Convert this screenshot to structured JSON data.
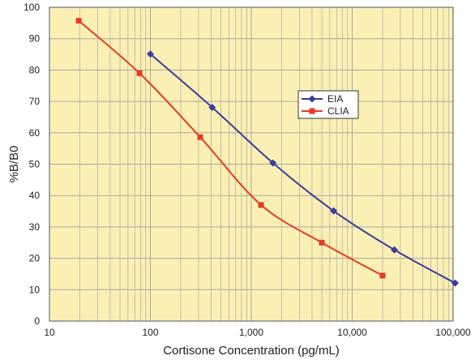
{
  "chart_data": {
    "type": "line",
    "title": "",
    "xlabel": "Cortisone Concentration (pg/mL)",
    "ylabel": "%B/B0",
    "x_scale": "log",
    "xlim": [
      10,
      100000
    ],
    "ylim": [
      0,
      100
    ],
    "x_ticks": [
      10,
      100,
      1000,
      10000,
      100000
    ],
    "x_tick_labels": [
      "10",
      "100",
      "1,000",
      "10,000",
      "100,000"
    ],
    "y_ticks": [
      0,
      10,
      20,
      30,
      40,
      50,
      60,
      70,
      80,
      90,
      100
    ],
    "y_tick_labels": [
      "0",
      "10",
      "20",
      "30",
      "40",
      "50",
      "60",
      "70",
      "80",
      "90",
      "100"
    ],
    "grid": true,
    "legend_position": "center-right",
    "plot_background": "#fbf0b4",
    "grid_color": "#a8a8a8",
    "series": [
      {
        "name": "EIA",
        "color": "#3b3d9a",
        "marker": "diamond",
        "points": [
          {
            "x": 100,
            "y": 85.1
          },
          {
            "x": 410,
            "y": 68.1
          },
          {
            "x": 1640,
            "y": 50.4
          },
          {
            "x": 6550,
            "y": 35.1
          },
          {
            "x": 26200,
            "y": 22.7
          },
          {
            "x": 104800,
            "y": 12.1
          }
        ]
      },
      {
        "name": "CLIA",
        "color": "#e63a25",
        "marker": "square",
        "points": [
          {
            "x": 19.5,
            "y": 95.7
          },
          {
            "x": 78,
            "y": 79.0
          },
          {
            "x": 312,
            "y": 58.6
          },
          {
            "x": 1250,
            "y": 37.0
          },
          {
            "x": 5000,
            "y": 25.0
          },
          {
            "x": 20000,
            "y": 14.5
          }
        ]
      }
    ]
  }
}
